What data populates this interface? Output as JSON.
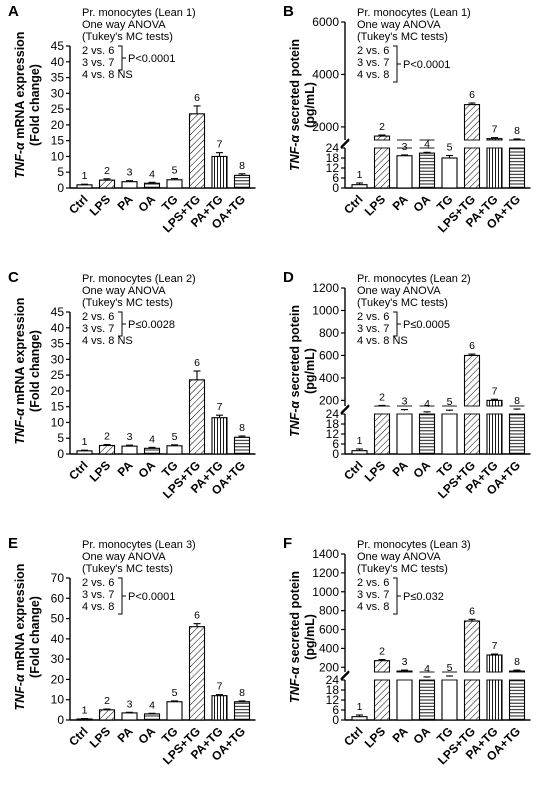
{
  "categories": [
    "Ctrl",
    "LPS",
    "PA",
    "OA",
    "TG",
    "LPS+TG",
    "PA+TG",
    "OA+TG"
  ],
  "group_numbers": [
    "1",
    "2",
    "3",
    "4",
    "5",
    "6",
    "7",
    "8"
  ],
  "panels": [
    {
      "letter": "A",
      "ylabel_italic": "TNF-α",
      "ylabel_rest": " mRNA expression",
      "ylabel_line2": "(Fold change)",
      "ann": {
        "title": "Pr. monocytes (Lean 1)",
        "test": "One way ANOVA",
        "mc": "(Tukey's MC tests)",
        "cmp1": "2 vs. 6",
        "cmp2": "3 vs. 7",
        "cmp3": "4 vs. 8 NS",
        "pval": "P<0.0001"
      }
    },
    {
      "letter": "B",
      "ylabel_italic": "TNF-α",
      "ylabel_rest": " secreted potein",
      "ylabel_line2": "(pg/mL)",
      "ann": {
        "title": "Pr. monocytes (Lean 1)",
        "test": "One way ANOVA",
        "mc": "(Tukey's MC tests)",
        "cmp1": "2 vs. 6",
        "cmp2": "3 vs. 7",
        "cmp3": "4 vs. 8",
        "pval": "P<0.0001"
      }
    },
    {
      "letter": "C",
      "ylabel_italic": "TNF-α",
      "ylabel_rest": " mRNA expression",
      "ylabel_line2": "(Fold change)",
      "ann": {
        "title": "Pr. monocytes (Lean 2)",
        "test": "One way ANOVA",
        "mc": "(Tukey's MC tests)",
        "cmp1": "2 vs. 6",
        "cmp2": "3 vs. 7",
        "cmp3": "4 vs. 8 NS",
        "pval": "P≤0.0028"
      }
    },
    {
      "letter": "D",
      "ylabel_italic": "TNF-α",
      "ylabel_rest": " secreted potein",
      "ylabel_line2": "(pg/mL)",
      "ann": {
        "title": "Pr. monocytes (Lean 2)",
        "test": "One way ANOVA",
        "mc": "(Tukey's MC tests)",
        "cmp1": "2 vs. 6",
        "cmp2": "3 vs. 7",
        "cmp3": "4 vs. 8 NS",
        "pval": "P≤0.0005"
      }
    },
    {
      "letter": "E",
      "ylabel_italic": "TNF-α",
      "ylabel_rest": " mRNA expression",
      "ylabel_line2": "(Fold change)",
      "ann": {
        "title": "Pr. monocytes (Lean 3)",
        "test": "One way ANOVA",
        "mc": "(Tukey's MC tests)",
        "cmp1": "2 vs. 6",
        "cmp2": "3 vs. 7",
        "cmp3": "4 vs. 8",
        "pval": "P<0.0001"
      }
    },
    {
      "letter": "F",
      "ylabel_italic": "TNF-α",
      "ylabel_rest": " secreted potein",
      "ylabel_line2": "(pg/mL)",
      "ann": {
        "title": "Pr. monocytes (Lean 3)",
        "test": "One way ANOVA",
        "mc": "(Tukey's MC tests)",
        "cmp1": "2 vs. 6",
        "cmp2": "3 vs. 7",
        "cmp3": "4 vs. 8",
        "pval": "P≤0.032"
      }
    }
  ],
  "chart_data": [
    {
      "panel": "A",
      "type": "bar",
      "categories": [
        "Ctrl",
        "LPS",
        "PA",
        "OA",
        "TG",
        "LPS+TG",
        "PA+TG",
        "OA+TG"
      ],
      "values": [
        1,
        2.5,
        2,
        1.5,
        2.6,
        23.5,
        10,
        4
      ],
      "errors": [
        0.2,
        0.4,
        0.3,
        0.3,
        0.4,
        2.5,
        1.2,
        0.5
      ],
      "ylabel": "TNF-α mRNA expression (Fold change)",
      "ylim": [
        0,
        45
      ],
      "yticks": [
        "0",
        "5",
        "10",
        "15",
        "20",
        "25",
        "30",
        "35",
        "40",
        "45"
      ]
    },
    {
      "panel": "B",
      "type": "bar",
      "broken_axis": true,
      "categories": [
        "Ctrl",
        "LPS",
        "PA",
        "OA",
        "TG",
        "LPS+TG",
        "PA+TG",
        "OA+TG"
      ],
      "values": [
        2,
        1650,
        900,
        1000,
        18,
        2850,
        1550,
        1500
      ],
      "errors": [
        1,
        40,
        30,
        30,
        1.5,
        60,
        40,
        40
      ],
      "ylabel": "TNF-α secreted potein (pg/mL)",
      "lower_ticks": [
        "0",
        "6",
        "12",
        "18",
        "24"
      ],
      "upper_ticks": [
        "2000",
        "4000",
        "6000"
      ]
    },
    {
      "panel": "C",
      "type": "bar",
      "categories": [
        "Ctrl",
        "LPS",
        "PA",
        "OA",
        "TG",
        "LPS+TG",
        "PA+TG",
        "OA+TG"
      ],
      "values": [
        1,
        2.7,
        2.5,
        1.8,
        2.6,
        23.5,
        11.5,
        5.3
      ],
      "errors": [
        0.2,
        0.3,
        0.3,
        0.3,
        0.3,
        2.8,
        0.8,
        0.4
      ],
      "ylabel": "TNF-α mRNA expression (Fold change)",
      "ylim": [
        0,
        45
      ],
      "yticks": [
        "0",
        "5",
        "10",
        "15",
        "20",
        "25",
        "30",
        "35",
        "40",
        "45"
      ]
    },
    {
      "panel": "D",
      "type": "bar",
      "broken_axis": true,
      "categories": [
        "Ctrl",
        "LPS",
        "PA",
        "OA",
        "TG",
        "LPS+TG",
        "PA+TG",
        "OA+TG"
      ],
      "values": [
        2,
        145,
        110,
        90,
        105,
        600,
        200,
        115
      ],
      "errors": [
        1,
        10,
        8,
        8,
        8,
        12,
        10,
        8
      ],
      "ylabel": "TNF-α secreted potein (pg/mL)",
      "lower_ticks": [
        "0",
        "6",
        "12",
        "18",
        "24"
      ],
      "upper_ticks": [
        "200",
        "400",
        "600",
        "800",
        "1000",
        "1200"
      ]
    },
    {
      "panel": "E",
      "type": "bar",
      "categories": [
        "Ctrl",
        "LPS",
        "PA",
        "OA",
        "TG",
        "LPS+TG",
        "PA+TG",
        "OA+TG"
      ],
      "values": [
        0.5,
        5,
        3.5,
        3,
        9,
        46,
        12,
        9
      ],
      "errors": [
        0.2,
        0.4,
        0.3,
        0.3,
        0.4,
        1.5,
        0.5,
        0.4
      ],
      "ylabel": "TNF-α mRNA expression (Fold change)",
      "ylim": [
        0,
        70
      ],
      "yticks": [
        "0",
        "10",
        "20",
        "30",
        "40",
        "50",
        "60",
        "70"
      ]
    },
    {
      "panel": "F",
      "type": "bar",
      "broken_axis": true,
      "categories": [
        "Ctrl",
        "LPS",
        "PA",
        "OA",
        "TG",
        "LPS+TG",
        "PA+TG",
        "OA+TG"
      ],
      "values": [
        2,
        270,
        160,
        90,
        100,
        690,
        330,
        160
      ],
      "errors": [
        1,
        12,
        10,
        8,
        8,
        18,
        10,
        10
      ],
      "ylabel": "TNF-α secreted potein (pg/mL)",
      "lower_ticks": [
        "0",
        "6",
        "12",
        "18",
        "24"
      ],
      "upper_ticks": [
        "200",
        "400",
        "600",
        "800",
        "1000",
        "1200",
        "1400"
      ]
    }
  ]
}
